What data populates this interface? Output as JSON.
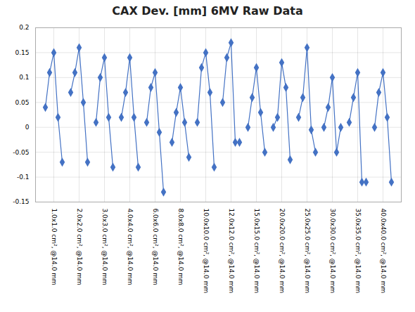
{
  "chart_data": {
    "type": "line",
    "title": "CAX Dev. [mm] 6MV Raw Data",
    "categories": [
      null,
      null,
      "1.0x1.0 cm², @14.0 mm",
      null,
      null,
      null,
      null,
      null,
      "2.0x2.0 cm², @14.0 mm",
      null,
      null,
      null,
      null,
      null,
      "3.0x3.0 cm², @14.0 mm",
      null,
      null,
      null,
      null,
      null,
      "4.0x4.0 cm², @14.0 mm",
      null,
      null,
      null,
      null,
      null,
      "6.0x6.0 cm², @14.0 mm",
      null,
      null,
      null,
      null,
      null,
      "8.0x8.0 cm², @14.0 mm",
      null,
      null,
      null,
      null,
      null,
      "10.0x10.0 cm², @14.0 mm",
      null,
      null,
      null,
      null,
      null,
      "12.0x12.0 cm², @14.0 mm",
      null,
      null,
      null,
      null,
      null,
      "15.0x15.0 cm², @14.0 mm",
      null,
      null,
      null,
      null,
      null,
      "20.0x20.0 cm², @14.0 mm",
      null,
      null,
      null,
      null,
      null,
      "25.0x25.0 cm², @14.0 mm",
      null,
      null,
      null,
      null,
      null,
      "30.0x30.0 cm², @14.0 mm",
      null,
      null,
      null,
      null,
      null,
      "35.0x35.0 cm², @14.0 mm",
      null,
      null,
      null,
      null,
      null,
      "40.0x40.0 cm², @14.0 mm",
      null,
      null
    ],
    "values": [
      0.04,
      0.11,
      0.15,
      0.02,
      -0.07,
      null,
      0.07,
      0.11,
      0.16,
      0.05,
      -0.07,
      null,
      0.01,
      0.1,
      0.14,
      0.02,
      -0.08,
      null,
      0.02,
      0.07,
      0.14,
      0.02,
      -0.08,
      null,
      0.01,
      0.08,
      0.11,
      -0.01,
      -0.13,
      null,
      -0.03,
      0.03,
      0.08,
      0.01,
      -0.06,
      null,
      0.01,
      0.12,
      0.15,
      0.07,
      -0.08,
      null,
      0.05,
      0.14,
      0.17,
      -0.03,
      -0.03,
      null,
      0.0,
      0.06,
      0.12,
      0.03,
      -0.05,
      null,
      0.0,
      0.02,
      0.13,
      0.08,
      -0.065,
      null,
      0.02,
      0.06,
      0.16,
      -0.005,
      -0.05,
      null,
      0.0,
      0.04,
      0.1,
      -0.05,
      0.0,
      null,
      0.01,
      0.06,
      0.11,
      -0.11,
      -0.11,
      null,
      0.0,
      0.07,
      0.11,
      0.02,
      -0.11
    ],
    "color": "#4472C4",
    "marker": "diamond",
    "ylim": [
      -0.15,
      0.2
    ],
    "yticks": [
      -0.15,
      -0.1,
      -0.05,
      0,
      0.05,
      0.1,
      0.15,
      0.2
    ],
    "grid": true
  }
}
